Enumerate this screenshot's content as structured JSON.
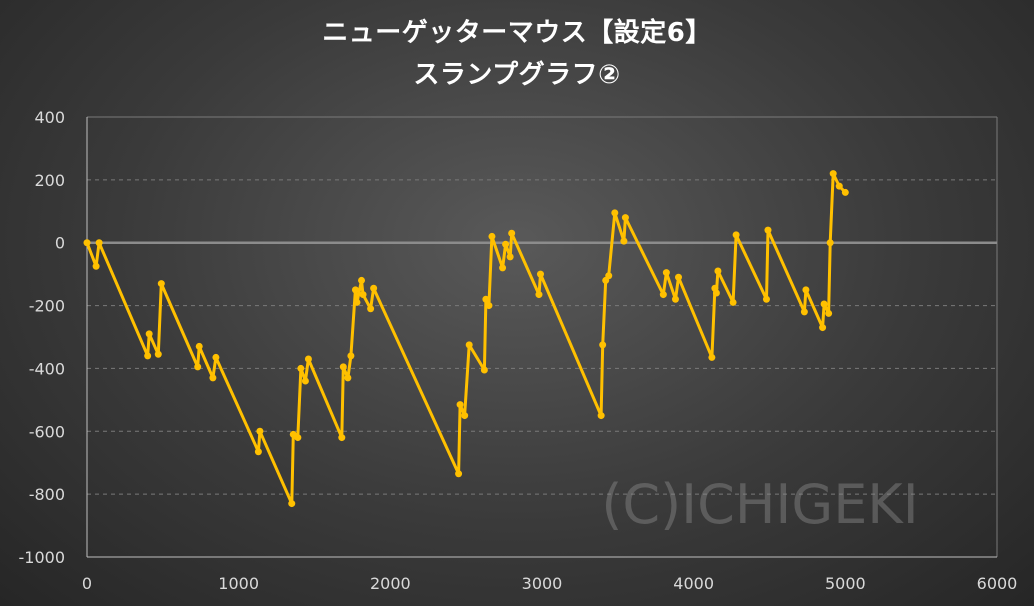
{
  "chart_data": {
    "type": "line",
    "title": "ニューゲッターマウス【設定6】",
    "subtitle": "スランプグラフ②",
    "watermark": "(C)ICHIGEKI",
    "xlim": [
      0,
      6000
    ],
    "ylim": [
      -1000,
      400
    ],
    "x_ticks": [
      0,
      1000,
      2000,
      3000,
      4000,
      5000,
      6000
    ],
    "y_ticks": [
      400,
      200,
      0,
      -200,
      -400,
      -600,
      -800,
      -1000
    ],
    "x_tick_labels": [
      "0",
      "1000",
      "2000",
      "3000",
      "4000",
      "5000",
      "6000"
    ],
    "y_tick_labels": [
      "400",
      "200",
      "0",
      "-200",
      "-400",
      "-600",
      "-800",
      "-1000"
    ],
    "grid": "horizontal dashed",
    "colors": {
      "line": "#FFC000",
      "zero_line": "#8C8C8C",
      "grid": "#7A7A7A",
      "axis_text": "#D9D9D9"
    },
    "series": [
      {
        "x": [
          0,
          60,
          80,
          400,
          410,
          470,
          490,
          730,
          740,
          830,
          850,
          1130,
          1140,
          1350,
          1360,
          1390,
          1410,
          1440,
          1460,
          1680,
          1690,
          1720,
          1740,
          1770,
          1780,
          1810,
          1820,
          1870,
          1890,
          2450,
          2460,
          2490,
          2520,
          2620,
          2630,
          2650,
          2670,
          2740,
          2760,
          2790,
          2800,
          2980,
          2990,
          3390,
          3400,
          3420,
          3440,
          3480,
          3540,
          3550,
          3800,
          3820,
          3880,
          3900,
          4120,
          4140,
          4150,
          4160,
          4260,
          4280,
          4480,
          4490,
          4730,
          4740,
          4850,
          4860,
          4890,
          4900,
          4920,
          4960,
          5000
        ],
        "y": [
          0,
          -75,
          0,
          -360,
          -290,
          -355,
          -130,
          -395,
          -330,
          -430,
          -365,
          -665,
          -600,
          -830,
          -610,
          -620,
          -400,
          -440,
          -370,
          -620,
          -395,
          -430,
          -360,
          -150,
          -190,
          -120,
          -165,
          -210,
          -145,
          -735,
          -515,
          -550,
          -325,
          -405,
          -180,
          -200,
          20,
          -80,
          -5,
          -45,
          30,
          -165,
          -100,
          -550,
          -325,
          -120,
          -105,
          95,
          5,
          80,
          -165,
          -95,
          -180,
          -110,
          -365,
          -145,
          -160,
          -90,
          -190,
          25,
          -180,
          40,
          -220,
          -150,
          -270,
          -195,
          -225,
          0,
          220,
          180,
          160
        ]
      }
    ]
  }
}
